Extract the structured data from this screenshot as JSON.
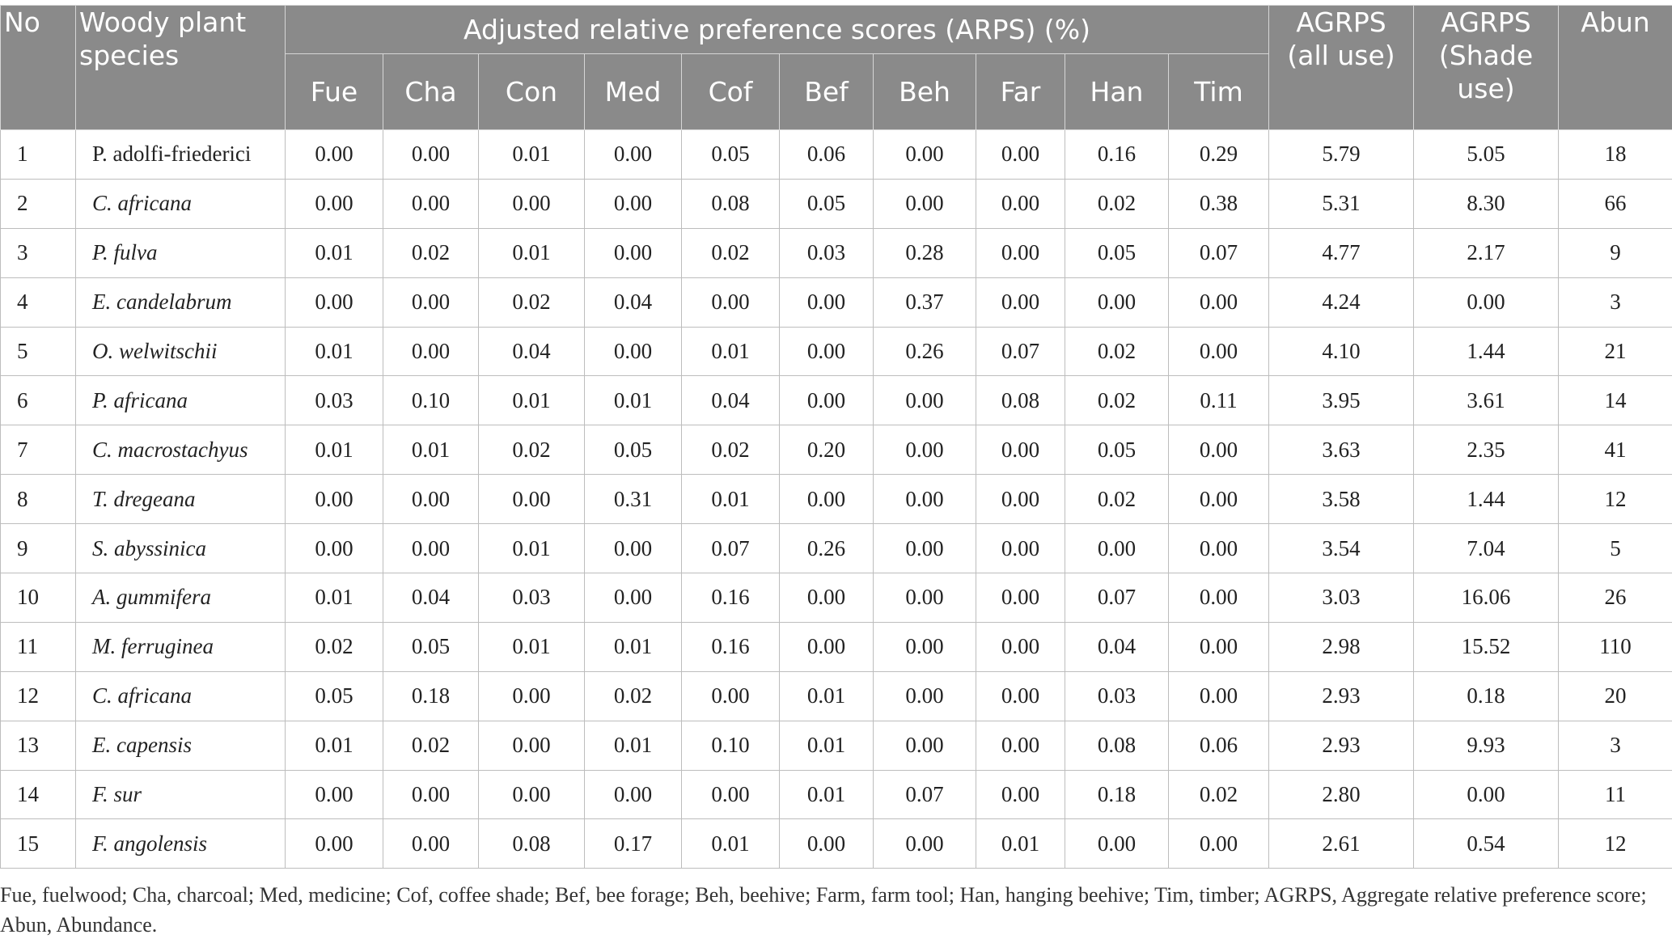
{
  "table": {
    "header": {
      "no": "No",
      "species": "Woody plant species",
      "arps_group": "Adjusted relative preference scores (ARPS) (%)",
      "uses": [
        "Fue",
        "Cha",
        "Con",
        "Med",
        "Cof",
        "Bef",
        "Beh",
        "Far",
        "Han",
        "Tim"
      ],
      "agrps_all": "AGRPS (all use)",
      "agrps_shade": "AGRPS (Shade use)",
      "abun": "Abun"
    },
    "rows": [
      {
        "no": "1",
        "species": "P. adolfi-friederici",
        "italic": false,
        "scores": [
          "0.00",
          "0.00",
          "0.01",
          "0.00",
          "0.05",
          "0.06",
          "0.00",
          "0.00",
          "0.16",
          "0.29"
        ],
        "agrps_all": "5.79",
        "agrps_shade": "5.05",
        "abun": "18"
      },
      {
        "no": "2",
        "species": "C. africana",
        "italic": true,
        "scores": [
          "0.00",
          "0.00",
          "0.00",
          "0.00",
          "0.08",
          "0.05",
          "0.00",
          "0.00",
          "0.02",
          "0.38"
        ],
        "agrps_all": "5.31",
        "agrps_shade": "8.30",
        "abun": "66"
      },
      {
        "no": "3",
        "species": "P. fulva",
        "italic": true,
        "scores": [
          "0.01",
          "0.02",
          "0.01",
          "0.00",
          "0.02",
          "0.03",
          "0.28",
          "0.00",
          "0.05",
          "0.07"
        ],
        "agrps_all": "4.77",
        "agrps_shade": "2.17",
        "abun": "9"
      },
      {
        "no": "4",
        "species": "E. candelabrum",
        "italic": true,
        "scores": [
          "0.00",
          "0.00",
          "0.02",
          "0.04",
          "0.00",
          "0.00",
          "0.37",
          "0.00",
          "0.00",
          "0.00"
        ],
        "agrps_all": "4.24",
        "agrps_shade": "0.00",
        "abun": "3"
      },
      {
        "no": "5",
        "species": "O. welwitschii",
        "italic": true,
        "scores": [
          "0.01",
          "0.00",
          "0.04",
          "0.00",
          "0.01",
          "0.00",
          "0.26",
          "0.07",
          "0.02",
          "0.00"
        ],
        "agrps_all": "4.10",
        "agrps_shade": "1.44",
        "abun": "21"
      },
      {
        "no": "6",
        "species": "P. africana",
        "italic": true,
        "scores": [
          "0.03",
          "0.10",
          "0.01",
          "0.01",
          "0.04",
          "0.00",
          "0.00",
          "0.08",
          "0.02",
          "0.11"
        ],
        "agrps_all": "3.95",
        "agrps_shade": "3.61",
        "abun": "14"
      },
      {
        "no": "7",
        "species": "C. macrostachyus",
        "italic": true,
        "scores": [
          "0.01",
          "0.01",
          "0.02",
          "0.05",
          "0.02",
          "0.20",
          "0.00",
          "0.00",
          "0.05",
          "0.00"
        ],
        "agrps_all": "3.63",
        "agrps_shade": "2.35",
        "abun": "41"
      },
      {
        "no": "8",
        "species": "T. dregeana",
        "italic": true,
        "scores": [
          "0.00",
          "0.00",
          "0.00",
          "0.31",
          "0.01",
          "0.00",
          "0.00",
          "0.00",
          "0.02",
          "0.00"
        ],
        "agrps_all": "3.58",
        "agrps_shade": "1.44",
        "abun": "12"
      },
      {
        "no": "9",
        "species": "S. abyssinica",
        "italic": true,
        "scores": [
          "0.00",
          "0.00",
          "0.01",
          "0.00",
          "0.07",
          "0.26",
          "0.00",
          "0.00",
          "0.00",
          "0.00"
        ],
        "agrps_all": "3.54",
        "agrps_shade": "7.04",
        "abun": "5"
      },
      {
        "no": "10",
        "species": "A. gummifera",
        "italic": true,
        "scores": [
          "0.01",
          "0.04",
          "0.03",
          "0.00",
          "0.16",
          "0.00",
          "0.00",
          "0.00",
          "0.07",
          "0.00"
        ],
        "agrps_all": "3.03",
        "agrps_shade": "16.06",
        "abun": "26"
      },
      {
        "no": "11",
        "species": "M. ferruginea",
        "italic": true,
        "scores": [
          "0.02",
          "0.05",
          "0.01",
          "0.01",
          "0.16",
          "0.00",
          "0.00",
          "0.00",
          "0.04",
          "0.00"
        ],
        "agrps_all": "2.98",
        "agrps_shade": "15.52",
        "abun": "110"
      },
      {
        "no": "12",
        "species": "C. africana",
        "italic": true,
        "scores": [
          "0.05",
          "0.18",
          "0.00",
          "0.02",
          "0.00",
          "0.01",
          "0.00",
          "0.00",
          "0.03",
          "0.00"
        ],
        "agrps_all": "2.93",
        "agrps_shade": "0.18",
        "abun": "20"
      },
      {
        "no": "13",
        "species": "E. capensis",
        "italic": true,
        "scores": [
          "0.01",
          "0.02",
          "0.00",
          "0.01",
          "0.10",
          "0.01",
          "0.00",
          "0.00",
          "0.08",
          "0.06"
        ],
        "agrps_all": "2.93",
        "agrps_shade": "9.93",
        "abun": "3"
      },
      {
        "no": "14",
        "species": "F. sur",
        "italic": true,
        "scores": [
          "0.00",
          "0.00",
          "0.00",
          "0.00",
          "0.00",
          "0.01",
          "0.07",
          "0.00",
          "0.18",
          "0.02"
        ],
        "agrps_all": "2.80",
        "agrps_shade": "0.00",
        "abun": "11"
      },
      {
        "no": "15",
        "species": "F. angolensis",
        "italic": true,
        "scores": [
          "0.00",
          "0.00",
          "0.08",
          "0.17",
          "0.01",
          "0.00",
          "0.00",
          "0.01",
          "0.00",
          "0.00"
        ],
        "agrps_all": "2.61",
        "agrps_shade": "0.54",
        "abun": "12"
      }
    ]
  },
  "footnote": "Fue, fuelwood; Cha, charcoal; Med, medicine; Cof, coffee shade; Bef, bee forage; Beh, beehive; Farm, farm tool; Han, hanging beehive; Tim, timber; AGRPS, Aggregate relative preference score; Abun, Abundance.",
  "colors": {
    "header_background": "#8a8a8a",
    "header_text": "#ffffff",
    "grid_line": "#bdbdbd"
  }
}
